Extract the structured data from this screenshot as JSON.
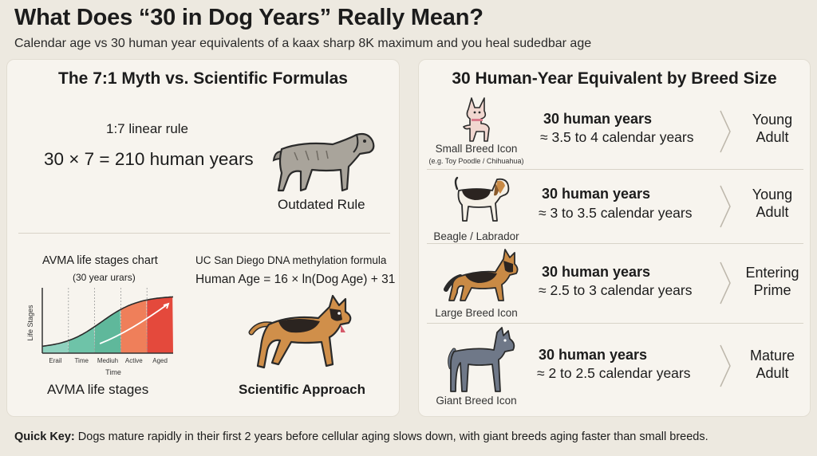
{
  "header": {
    "title": "What Does “30 in Dog Years” Really Mean?",
    "subtitle": "Calendar age vs 30 human year equivalents of a kaax sharp 8K maximum and you heal sudedbar age"
  },
  "left": {
    "heading": "The 7:1 Myth vs. Scientific Formulas",
    "rule_label": "1:7 linear rule",
    "equation": "30 × 7 = 210 human years",
    "outdated_label": "Outdated Rule",
    "chart_title": "AVMA life stages chart",
    "chart_subtitle": "(30 year urars)",
    "chart_caption": "AVMA life stages",
    "formula_source": "UC San Diego DNA methylation formula",
    "formula": "Human Age = 16 × ln(Dog Age) + 31",
    "scientific_label": "Scientific Approach"
  },
  "chart_data": {
    "type": "area",
    "title": "AVMA life stages chart",
    "subtitle": "(30 year urars)",
    "xlabel": "Time",
    "ylabel": "Life Stages",
    "categories": [
      "Erail",
      "Time",
      "Mediuh",
      "Active",
      "Aged"
    ],
    "colors": [
      "#8fd1be",
      "#6ec3a8",
      "#5fb89b",
      "#ef7f5a",
      "#e4493c"
    ],
    "grid": false
  },
  "right": {
    "heading": "30 Human-Year Equivalent by Breed Size",
    "rows": [
      {
        "caption": "Small Breed Icon",
        "subcaption": "(e.g. Toy Poodle / Chihuahua)",
        "years": "30 human years",
        "calendar": "≈ 3.5 to 4 calendar years",
        "stage_line1": "Young",
        "stage_line2": "Adult"
      },
      {
        "caption": "Beagle / Labrador",
        "years": "30 human years",
        "calendar": "≈ 3 to 3.5 calendar years",
        "stage_line1": "Young",
        "stage_line2": "Adult"
      },
      {
        "caption": "Large Breed Icon",
        "years": "30 human years",
        "calendar": "≈ 2.5 to 3 calendar years",
        "stage_line1": "Entering",
        "stage_line2": "Prime"
      },
      {
        "caption": "Giant Breed Icon",
        "years": "30 human years",
        "calendar": "≈ 2 to 2.5 calendar years",
        "stage_line1": "Mature",
        "stage_line2": "Adult"
      }
    ]
  },
  "footer": {
    "key_label": "Quick Key:",
    "key_text": " Dogs mature rapidly in their first 2 years before cellular aging slows down, with giant breeds aging faster than small breeds."
  }
}
